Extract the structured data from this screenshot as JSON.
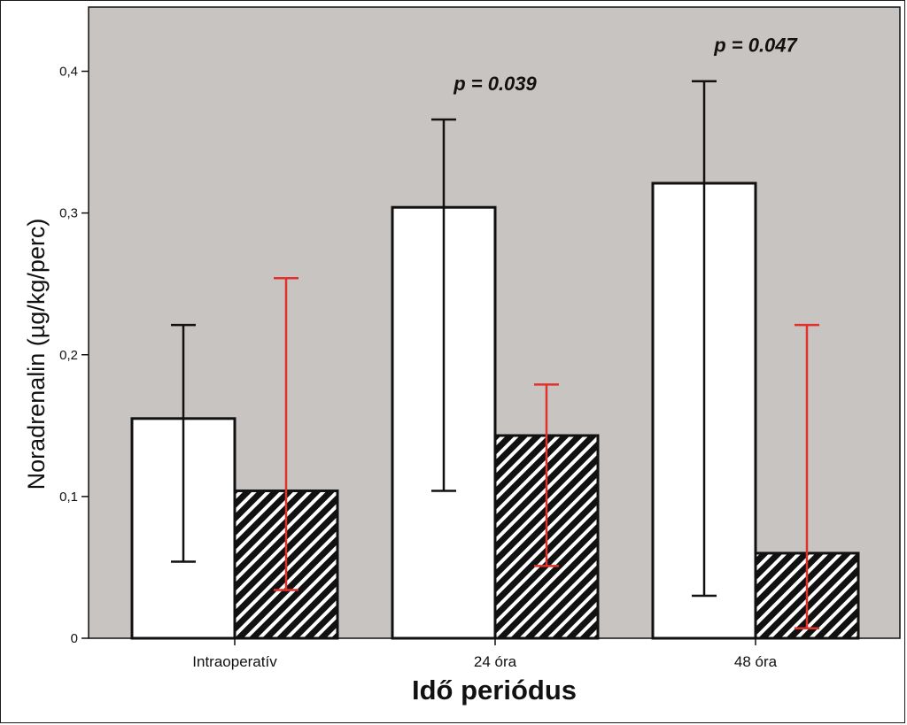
{
  "chart_data": {
    "type": "bar",
    "categories": [
      "Intraoperatív",
      "24 óra",
      "48 óra"
    ],
    "series": [
      {
        "values": [
          0.155,
          0.304,
          0.321
        ],
        "error_low": [
          0.054,
          0.104,
          0.03
        ],
        "error_high": [
          0.221,
          0.366,
          0.393
        ],
        "fill": "#ffffff",
        "error_color": "#111111"
      },
      {
        "values": [
          0.104,
          0.143,
          0.06
        ],
        "error_low": [
          0.034,
          0.051,
          0.007
        ],
        "error_high": [
          0.254,
          0.179,
          0.221
        ],
        "fill": "hatched",
        "error_color": "#e2312b"
      }
    ],
    "annotations": [
      {
        "category": "24 óra",
        "text": "p = 0.039"
      },
      {
        "category": "48 óra",
        "text": "p = 0.047"
      }
    ],
    "xlabel": "Idő periódus",
    "ylabel": "Noradrenalin (µg/kg/perc)",
    "ylim": [
      0,
      0.4
    ],
    "yticks": [
      0,
      0.1,
      0.2,
      0.3,
      0.4
    ],
    "ytick_labels": [
      "0",
      "0,1",
      "0,2",
      "0,3",
      "0,4"
    ],
    "plot_background": "#c8c4c1",
    "grid": false,
    "legend": "none"
  }
}
